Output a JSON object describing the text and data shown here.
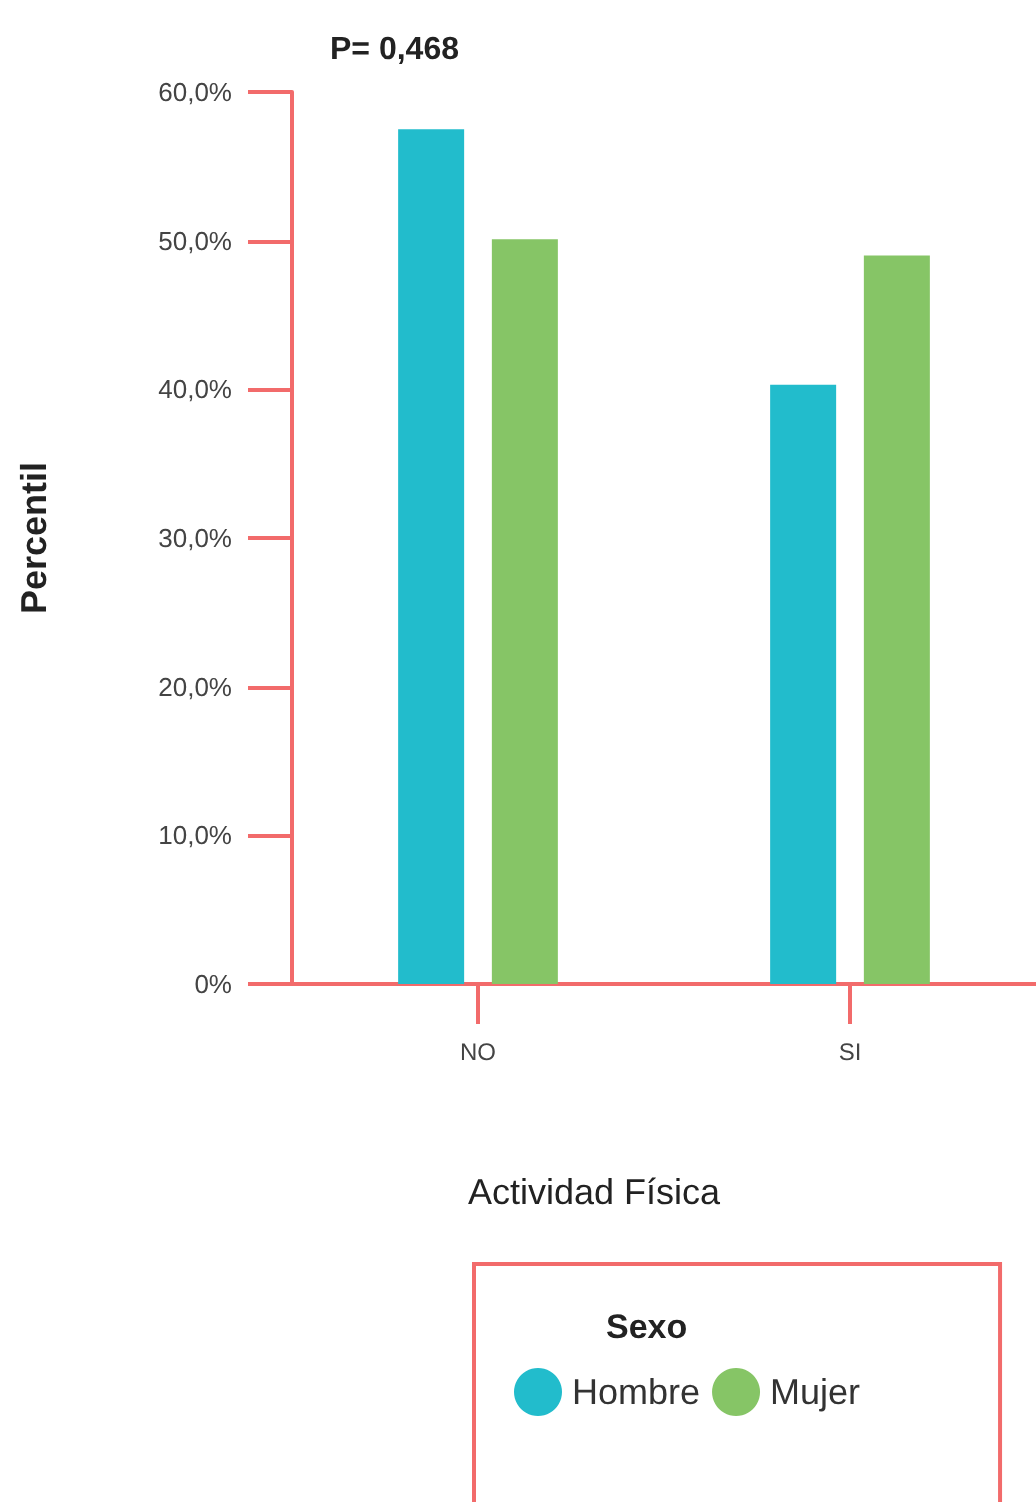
{
  "chart_data": {
    "type": "bar",
    "xlabel": "Actividad Física",
    "ylabel": "Percentil",
    "legend_title": "Sexo",
    "annotations": [
      "P= 0,468"
    ],
    "categories": [
      "NO",
      "SI"
    ],
    "series": [
      {
        "name": "Hombre",
        "color": "#22bccc",
        "values": [
          57.5,
          40.3
        ]
      },
      {
        "name": "Mujer",
        "color": "#86c566",
        "values": [
          50.1,
          49.0
        ]
      }
    ],
    "ylim": [
      0,
      60
    ],
    "yticks": [
      {
        "value": 0,
        "label": "0%"
      },
      {
        "value": 10,
        "label": "10,0%"
      },
      {
        "value": 20,
        "label": "20,0%"
      },
      {
        "value": 30,
        "label": "30,0%"
      },
      {
        "value": 40,
        "label": "40,0%"
      },
      {
        "value": 50,
        "label": "50,0%"
      },
      {
        "value": 60,
        "label": "60,0%"
      }
    ],
    "grid": false,
    "legend": "bottom"
  }
}
